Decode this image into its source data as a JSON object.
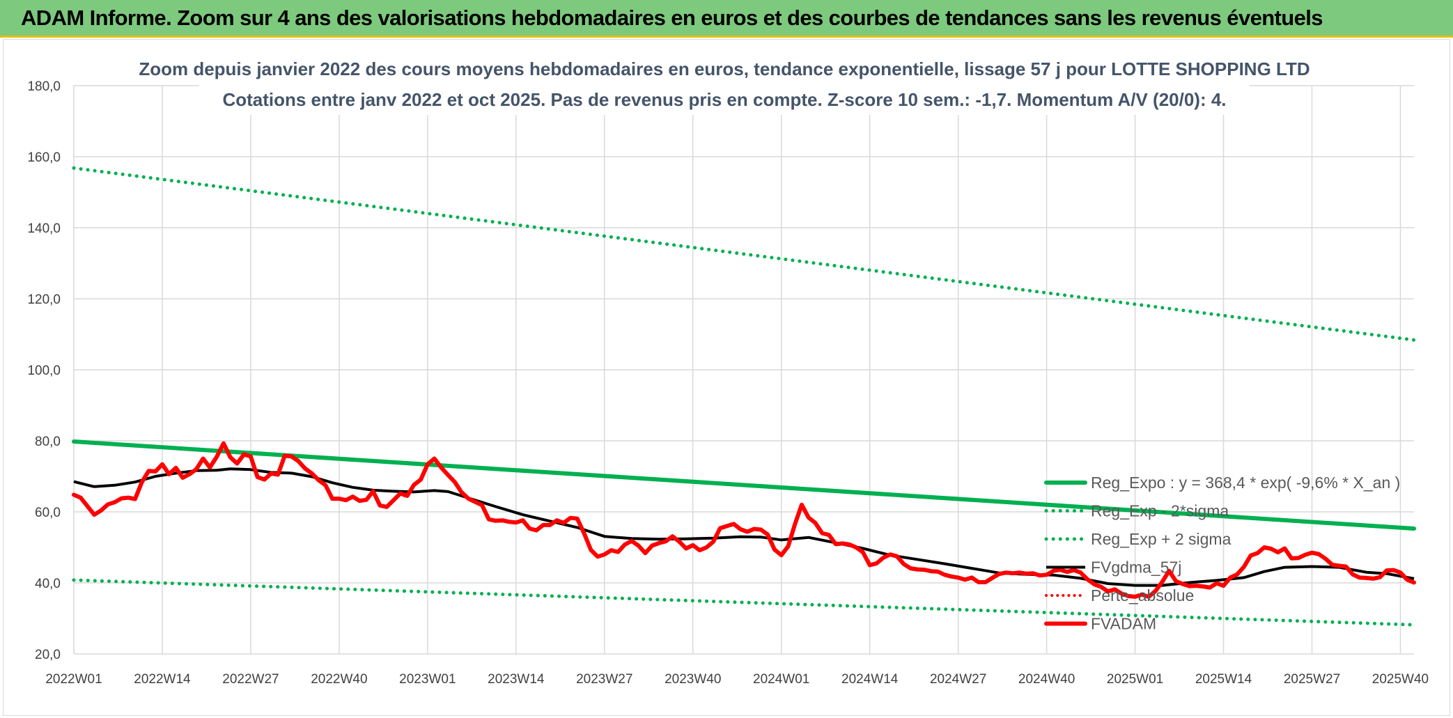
{
  "banner": {
    "title": "ADAM Informe. Zoom sur 4 ans des valorisations hebdomadaires en euros et des courbes de tendances sans les revenus éventuels"
  },
  "colors": {
    "trend": "#00b050",
    "sigma": "#00b050",
    "fvgdma": "#000000",
    "perte": "#ff0000",
    "fvadam": "#ff0000",
    "grid": "#d9d9d9",
    "banner": "#7dc97d"
  },
  "chart_data": {
    "type": "line",
    "title": "Zoom depuis janvier 2022 des cours moyens hebdomadaires en euros, tendance exponentielle, lissage 57 j pour LOTTE SHOPPING LTD",
    "subtitle": "Cotations entre janv 2022 et oct 2025. Pas de revenus pris en compte. Z-score 10 sem.: -1,7. Momentum A/V (20/0): 4.",
    "xlabel": "",
    "ylabel": "",
    "ylim": [
      20,
      180
    ],
    "yticks": [
      "20,0",
      "40,0",
      "60,0",
      "80,0",
      "100,0",
      "120,0",
      "140,0",
      "160,0",
      "180,0"
    ],
    "xlim": [
      0,
      197
    ],
    "xticks": [
      {
        "pos": 0,
        "label": "2022W01"
      },
      {
        "pos": 13,
        "label": "2022W14"
      },
      {
        "pos": 26,
        "label": "2022W27"
      },
      {
        "pos": 39,
        "label": "2022W40"
      },
      {
        "pos": 52,
        "label": "2023W01"
      },
      {
        "pos": 65,
        "label": "2023W14"
      },
      {
        "pos": 78,
        "label": "2023W27"
      },
      {
        "pos": 91,
        "label": "2023W40"
      },
      {
        "pos": 104,
        "label": "2024W01"
      },
      {
        "pos": 117,
        "label": "2024W14"
      },
      {
        "pos": 130,
        "label": "2024W27"
      },
      {
        "pos": 143,
        "label": "2024W40"
      },
      {
        "pos": 156,
        "label": "2025W01"
      },
      {
        "pos": 169,
        "label": "2025W14"
      },
      {
        "pos": 182,
        "label": "2025W27"
      },
      {
        "pos": 195,
        "label": "2025W40"
      }
    ],
    "grid": true,
    "legend_position": "right",
    "series": [
      {
        "name": "Reg_Expo : y = 368,4 * exp( -9,6% *  X_an )",
        "style": "solid-thick",
        "points": [
          [
            0,
            79.8
          ],
          [
            197,
            55.3
          ]
        ]
      },
      {
        "name": "Reg_Exp - 2*sigma",
        "style": "dotted",
        "points": [
          [
            0,
            40.8
          ],
          [
            197,
            28.2
          ]
        ]
      },
      {
        "name": "Reg_Exp + 2 sigma",
        "style": "dotted",
        "points": [
          [
            0,
            156.8
          ],
          [
            197,
            108.4
          ]
        ]
      },
      {
        "name": "FVgdma_57j",
        "style": "solid",
        "points": [
          [
            0,
            68.5
          ],
          [
            3,
            67.1
          ],
          [
            6,
            67.5
          ],
          [
            9,
            68.4
          ],
          [
            12,
            70.0
          ],
          [
            15,
            70.9
          ],
          [
            18,
            71.6
          ],
          [
            21,
            71.7
          ],
          [
            23,
            72.1
          ],
          [
            26,
            71.9
          ],
          [
            29,
            71.1
          ],
          [
            32,
            70.9
          ],
          [
            35,
            69.9
          ],
          [
            38,
            68.2
          ],
          [
            41,
            66.9
          ],
          [
            44,
            66.1
          ],
          [
            47,
            65.8
          ],
          [
            50,
            65.6
          ],
          [
            53,
            66.0
          ],
          [
            55,
            65.7
          ],
          [
            58,
            63.9
          ],
          [
            62,
            61.5
          ],
          [
            66,
            59.2
          ],
          [
            70,
            57.4
          ],
          [
            74,
            55.6
          ],
          [
            78,
            53.1
          ],
          [
            82,
            52.5
          ],
          [
            86,
            52.3
          ],
          [
            90,
            52.4
          ],
          [
            94,
            52.6
          ],
          [
            98,
            53.0
          ],
          [
            101,
            52.9
          ],
          [
            104,
            52.1
          ],
          [
            108,
            52.8
          ],
          [
            112,
            51.3
          ],
          [
            116,
            49.7
          ],
          [
            120,
            47.8
          ],
          [
            124,
            46.6
          ],
          [
            128,
            45.4
          ],
          [
            132,
            44.1
          ],
          [
            136,
            42.8
          ],
          [
            140,
            42.4
          ],
          [
            144,
            42.2
          ],
          [
            148,
            41.3
          ],
          [
            152,
            39.8
          ],
          [
            156,
            39.3
          ],
          [
            160,
            39.3
          ],
          [
            164,
            40.1
          ],
          [
            168,
            40.7
          ],
          [
            172,
            41.5
          ],
          [
            175,
            43.2
          ],
          [
            178,
            44.4
          ],
          [
            182,
            44.6
          ],
          [
            186,
            44.4
          ],
          [
            190,
            43.0
          ],
          [
            193,
            42.6
          ],
          [
            197,
            41.2
          ]
        ]
      },
      {
        "name": "Perte_absolue",
        "style": "dotted-red",
        "points": []
      },
      {
        "name": "FVADAM",
        "style": "solid-thick",
        "points": [
          [
            0,
            64.8
          ],
          [
            1,
            64.0
          ],
          [
            3,
            59.2
          ],
          [
            4,
            60.4
          ],
          [
            5,
            62.1
          ],
          [
            6,
            62.7
          ],
          [
            7,
            63.8
          ],
          [
            8,
            64.0
          ],
          [
            9,
            63.6
          ],
          [
            10,
            68.4
          ],
          [
            11,
            71.5
          ],
          [
            12,
            71.4
          ],
          [
            13,
            73.4
          ],
          [
            14,
            70.6
          ],
          [
            15,
            72.4
          ],
          [
            16,
            69.6
          ],
          [
            17,
            70.6
          ],
          [
            18,
            72.0
          ],
          [
            19,
            75.0
          ],
          [
            20,
            72.5
          ],
          [
            21,
            75.5
          ],
          [
            22,
            79.3
          ],
          [
            23,
            75.4
          ],
          [
            24,
            73.6
          ],
          [
            25,
            76.2
          ],
          [
            26,
            75.6
          ],
          [
            27,
            69.8
          ],
          [
            28,
            69.1
          ],
          [
            29,
            70.8
          ],
          [
            30,
            70.5
          ],
          [
            31,
            75.8
          ],
          [
            32,
            75.6
          ],
          [
            33,
            74.3
          ],
          [
            34,
            72.2
          ],
          [
            35,
            70.8
          ],
          [
            36,
            68.9
          ],
          [
            37,
            67.5
          ],
          [
            38,
            63.7
          ],
          [
            39,
            63.7
          ],
          [
            40,
            63.3
          ],
          [
            41,
            64.3
          ],
          [
            42,
            63.1
          ],
          [
            43,
            63.4
          ],
          [
            44,
            65.8
          ],
          [
            45,
            61.8
          ],
          [
            46,
            61.4
          ],
          [
            47,
            63.3
          ],
          [
            48,
            65.2
          ],
          [
            49,
            64.5
          ],
          [
            50,
            67.6
          ],
          [
            51,
            69.1
          ],
          [
            52,
            73.4
          ],
          [
            53,
            75.0
          ],
          [
            54,
            72.5
          ],
          [
            55,
            70.4
          ],
          [
            56,
            68.4
          ],
          [
            57,
            65.5
          ],
          [
            58,
            63.7
          ],
          [
            59,
            62.8
          ],
          [
            60,
            61.9
          ],
          [
            61,
            57.9
          ],
          [
            62,
            57.5
          ],
          [
            63,
            57.6
          ],
          [
            64,
            57.2
          ],
          [
            65,
            57.0
          ],
          [
            66,
            57.6
          ],
          [
            67,
            55.3
          ],
          [
            68,
            54.8
          ],
          [
            69,
            56.3
          ],
          [
            70,
            56.3
          ],
          [
            71,
            57.6
          ],
          [
            72,
            56.9
          ],
          [
            73,
            58.3
          ],
          [
            74,
            58.1
          ],
          [
            75,
            54.0
          ],
          [
            76,
            49.3
          ],
          [
            77,
            47.4
          ],
          [
            78,
            48.0
          ],
          [
            79,
            49.2
          ],
          [
            80,
            48.7
          ],
          [
            81,
            50.8
          ],
          [
            82,
            51.8
          ],
          [
            83,
            50.5
          ],
          [
            84,
            48.4
          ],
          [
            85,
            50.5
          ],
          [
            86,
            51.2
          ],
          [
            87,
            51.7
          ],
          [
            88,
            53.1
          ],
          [
            89,
            51.6
          ],
          [
            90,
            49.7
          ],
          [
            91,
            50.6
          ],
          [
            92,
            49.2
          ],
          [
            93,
            50.0
          ],
          [
            94,
            51.6
          ],
          [
            95,
            55.4
          ],
          [
            96,
            56.0
          ],
          [
            97,
            56.6
          ],
          [
            98,
            55.1
          ],
          [
            99,
            54.4
          ],
          [
            100,
            55.2
          ],
          [
            101,
            55.0
          ],
          [
            102,
            53.6
          ],
          [
            103,
            49.4
          ],
          [
            104,
            47.8
          ],
          [
            105,
            50.3
          ],
          [
            106,
            56.5
          ],
          [
            107,
            62.0
          ],
          [
            108,
            58.4
          ],
          [
            109,
            56.9
          ],
          [
            110,
            54.0
          ],
          [
            111,
            53.5
          ],
          [
            112,
            50.9
          ],
          [
            113,
            51.1
          ],
          [
            114,
            50.8
          ],
          [
            115,
            50.0
          ],
          [
            116,
            48.6
          ],
          [
            117,
            45.0
          ],
          [
            118,
            45.5
          ],
          [
            119,
            47.1
          ],
          [
            120,
            48.0
          ],
          [
            121,
            47.5
          ],
          [
            122,
            45.3
          ],
          [
            123,
            44.1
          ],
          [
            124,
            43.8
          ],
          [
            125,
            43.7
          ],
          [
            126,
            43.3
          ],
          [
            127,
            43.2
          ],
          [
            128,
            42.3
          ],
          [
            129,
            41.8
          ],
          [
            130,
            41.5
          ],
          [
            131,
            40.9
          ],
          [
            132,
            41.5
          ],
          [
            133,
            40.2
          ],
          [
            134,
            40.2
          ],
          [
            135,
            41.4
          ],
          [
            136,
            42.5
          ],
          [
            137,
            42.9
          ],
          [
            138,
            42.7
          ],
          [
            139,
            42.9
          ],
          [
            140,
            42.6
          ],
          [
            141,
            42.7
          ],
          [
            142,
            42.1
          ],
          [
            143,
            42.3
          ],
          [
            144,
            43.4
          ],
          [
            145,
            43.7
          ],
          [
            146,
            43.1
          ],
          [
            147,
            43.6
          ],
          [
            148,
            42.9
          ],
          [
            149,
            41.0
          ],
          [
            150,
            39.6
          ],
          [
            151,
            38.9
          ],
          [
            152,
            37.6
          ],
          [
            153,
            38.2
          ],
          [
            154,
            37.0
          ],
          [
            155,
            36.3
          ],
          [
            156,
            36.1
          ],
          [
            157,
            36.7
          ],
          [
            158,
            36.1
          ],
          [
            159,
            37.7
          ],
          [
            160,
            40.3
          ],
          [
            161,
            43.4
          ],
          [
            162,
            40.5
          ],
          [
            163,
            39.7
          ],
          [
            164,
            39.1
          ],
          [
            165,
            39.2
          ],
          [
            166,
            39.0
          ],
          [
            167,
            38.7
          ],
          [
            168,
            39.9
          ],
          [
            169,
            39.2
          ],
          [
            170,
            41.5
          ],
          [
            171,
            42.4
          ],
          [
            172,
            44.5
          ],
          [
            173,
            47.7
          ],
          [
            174,
            48.4
          ],
          [
            175,
            50.0
          ],
          [
            176,
            49.6
          ],
          [
            177,
            48.6
          ],
          [
            178,
            49.7
          ],
          [
            179,
            46.9
          ],
          [
            180,
            47.0
          ],
          [
            181,
            47.9
          ],
          [
            182,
            48.5
          ],
          [
            183,
            48.1
          ],
          [
            184,
            46.8
          ],
          [
            185,
            45.1
          ],
          [
            186,
            44.8
          ],
          [
            187,
            44.6
          ],
          [
            188,
            42.4
          ],
          [
            189,
            41.5
          ],
          [
            190,
            41.4
          ],
          [
            191,
            41.2
          ],
          [
            192,
            41.6
          ],
          [
            193,
            43.5
          ],
          [
            194,
            43.6
          ],
          [
            195,
            42.9
          ],
          [
            196,
            40.9
          ],
          [
            197,
            40.1
          ]
        ]
      }
    ]
  }
}
